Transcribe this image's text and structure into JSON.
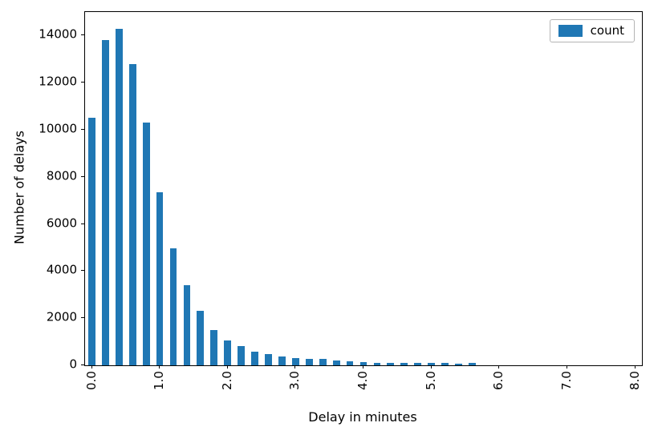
{
  "figure": {
    "background": "#ffffff",
    "bar_color": "#1f77b4",
    "spine_color": "#000000",
    "text_color": "#000000"
  },
  "chart_data": {
    "type": "bar",
    "title": "",
    "xlabel": "Delay in minutes",
    "ylabel": "Number of delays",
    "legend": {
      "label": "count",
      "position": "upper right"
    },
    "grid": false,
    "categories": [
      "0.0",
      "0.2",
      "0.4",
      "0.6",
      "0.8",
      "1.0",
      "1.2",
      "1.4",
      "1.6",
      "1.8",
      "2.0",
      "2.2",
      "2.4",
      "2.6",
      "2.8",
      "3.0",
      "3.2",
      "3.4",
      "3.6",
      "3.8",
      "4.0",
      "4.2",
      "4.4",
      "4.6",
      "4.8",
      "5.0",
      "5.2",
      "5.4",
      "5.6",
      "5.8",
      "6.0",
      "6.2",
      "6.4",
      "6.6",
      "6.8",
      "7.0",
      "7.2",
      "7.4",
      "7.6",
      "7.8",
      "8.0"
    ],
    "values": [
      10500,
      13800,
      14300,
      12800,
      10300,
      7350,
      4950,
      3400,
      2300,
      1500,
      1050,
      800,
      580,
      470,
      380,
      300,
      270,
      260,
      200,
      170,
      130,
      110,
      110,
      100,
      100,
      90,
      90,
      80,
      90,
      0,
      0,
      0,
      0,
      0,
      0,
      0,
      0,
      0,
      0,
      0,
      0
    ],
    "x_tick_labels": [
      "0.0",
      "1.0",
      "2.0",
      "3.0",
      "4.0",
      "5.0",
      "6.0",
      "7.0",
      "8.0"
    ],
    "x_tick_every": 5,
    "y_ticks": [
      0,
      2000,
      4000,
      6000,
      8000,
      10000,
      12000,
      14000
    ],
    "ylim": [
      0,
      15000
    ],
    "bar_slot_fraction": 0.52
  }
}
